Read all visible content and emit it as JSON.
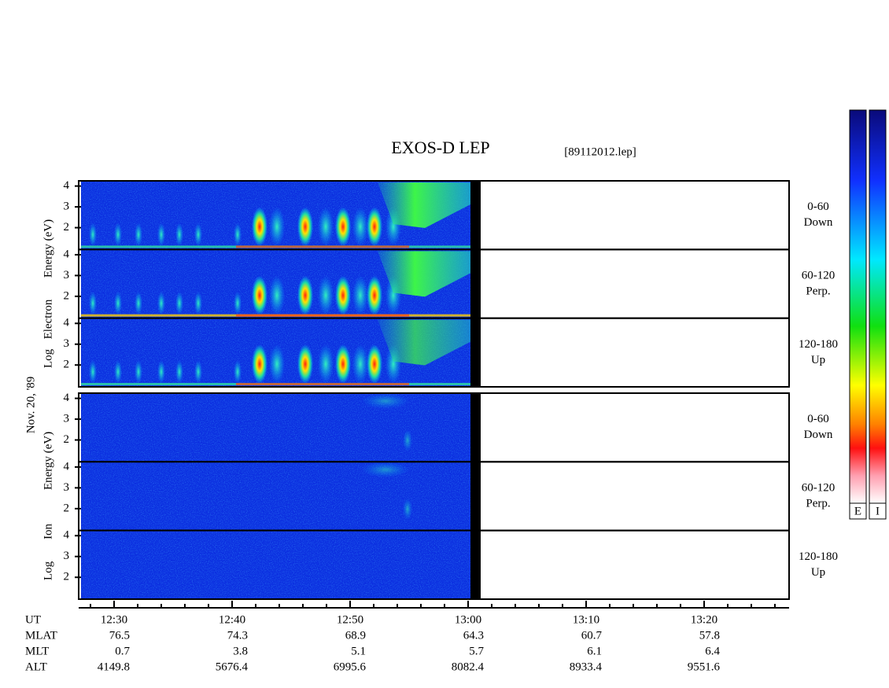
{
  "title": "EXOS-D LEP",
  "file": "[89112012.lep]",
  "date": "Nov. 20, '89",
  "ylim": [
    0.95,
    4.25
  ],
  "yticks": [
    2,
    3,
    4
  ],
  "blocks": [
    {
      "ylabel": [
        "Log",
        "Electron",
        "Energy (eV)"
      ],
      "panels": [
        [
          "0-60",
          "Down"
        ],
        [
          "60-120",
          "Perp."
        ],
        [
          "120-180",
          "Up"
        ]
      ]
    },
    {
      "ylabel": [
        "Log",
        "Ion",
        "Energy (eV)"
      ],
      "panels": [
        [
          "0-60",
          "Down"
        ],
        [
          "60-120",
          "Perp."
        ],
        [
          "120-180",
          "Up"
        ]
      ]
    }
  ],
  "xlim": [
    747,
    807.2
  ],
  "xticks": [
    {
      "value": 750,
      "label": "12:30"
    },
    {
      "value": 760,
      "label": "12:40"
    },
    {
      "value": 770,
      "label": "12:50"
    },
    {
      "value": 780,
      "label": "13:00"
    },
    {
      "value": 790,
      "label": "13:10"
    },
    {
      "value": 800,
      "label": "13:20"
    }
  ],
  "xminorticks": [
    748,
    752,
    754,
    756,
    758,
    762,
    764,
    766,
    768,
    772,
    774,
    776,
    778,
    782,
    784,
    786,
    788,
    792,
    794,
    796,
    798,
    802,
    804,
    806
  ],
  "orbit": {
    "rows": [
      {
        "name": "UT"
      },
      {
        "name": "MLAT",
        "values": [
          76.5,
          74.3,
          68.9,
          64.3,
          60.7,
          57.8
        ]
      },
      {
        "name": "MLT",
        "values": [
          0.7,
          3.8,
          5.1,
          5.7,
          6.1,
          6.4
        ]
      },
      {
        "name": "ALT",
        "values": [
          4149.8,
          5676.4,
          6995.6,
          8082.4,
          8933.4,
          9551.6
        ]
      }
    ]
  },
  "colorbars": [
    "E",
    "I"
  ]
}
